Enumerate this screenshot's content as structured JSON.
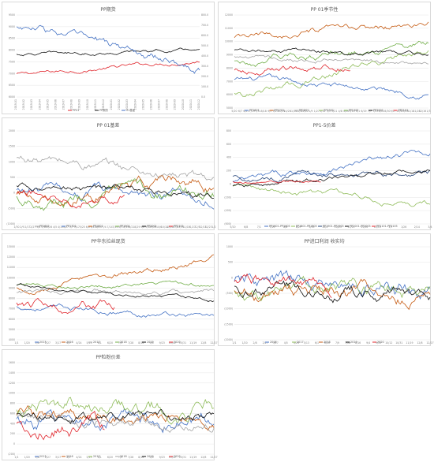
{
  "colors": {
    "blue": "#4472c4",
    "orange": "#c55a11",
    "gray": "#a5a5a5",
    "green": "#70ad47",
    "black": "#111111",
    "red": "#e0242b",
    "lightgreen": "#8fbc5a",
    "darkblue": "#264478",
    "grid": "#e6e6e6"
  },
  "chart_data": [
    {
      "type": "line",
      "title": "PP期货",
      "x_ticks": [
        "2019-01",
        "2019-02",
        "2019-03",
        "2019-04",
        "2019-05",
        "2019-06",
        "2019-07",
        "2019-08",
        "2019-09",
        "2019-10",
        "2019-11",
        "2019-12",
        "2020-01",
        "2020-02",
        "2020-03",
        "2020-04",
        "2020-05",
        "2020-06",
        "2020-07",
        "2020-08",
        "2020-09",
        "2020-10",
        "2020-11",
        "2020-12"
      ],
      "y_ticks": [
        "9500",
        "9000",
        "8500",
        "8000",
        "7500",
        "7000",
        "6500",
        "6000"
      ],
      "y2_ticks": [
        "800.0",
        "700.0",
        "600.0",
        "500.0",
        "400.0",
        "300.0",
        "200.0",
        "100.0",
        "0.0"
      ],
      "legend_position": "bottom",
      "series": [
        {
          "name": "PP01",
          "color": "red"
        },
        {
          "name": "PP期货",
          "color": "black"
        },
        {
          "name": "01基差",
          "color": "blue"
        }
      ]
    },
    {
      "type": "line",
      "title": "PP 01季节性",
      "x_ticks": [
        "5/20",
        "6/7",
        "6/25",
        "7/13",
        "7/31",
        "8/18",
        "9/5",
        "9/23",
        "10/11",
        "10/29",
        "11/16",
        "12/4",
        "12/22",
        "1/9",
        "1/27",
        "2/14",
        "3/3",
        "3/21",
        "4/8",
        "4/26",
        "5/14",
        "6/1",
        "6/19",
        "7/7",
        "7/25",
        "8/12",
        "8/30",
        "9/17",
        "10/5",
        "10/23",
        "11/10",
        "11/28",
        "12/16",
        "1/3"
      ],
      "y_ticks": [
        "12000",
        "11000",
        "10000",
        "9000",
        "8000",
        "7000",
        "6000",
        "5000"
      ],
      "legend_position": "bottom",
      "series": [
        {
          "name": "PP1601",
          "color": "blue"
        },
        {
          "name": "PP1701",
          "color": "orange"
        },
        {
          "name": "PP1801",
          "color": "gray"
        },
        {
          "name": "PP1901",
          "color": "lightgreen"
        },
        {
          "name": "PP1905",
          "color": "green"
        },
        {
          "name": "PP2001",
          "color": "black"
        },
        {
          "name": "PP2101",
          "color": "red"
        }
      ]
    },
    {
      "type": "line",
      "title": "PP 01基差",
      "x_ticks": [
        "1/30",
        "2/9",
        "2/17",
        "2/27",
        "3/8",
        "3/18",
        "3/26",
        "4/5",
        "4/15",
        "4/27",
        "5/7",
        "5/17",
        "5/25",
        "6/6",
        "6/14",
        "6/24",
        "7/4",
        "7/14",
        "7/24",
        "8/3",
        "8/13",
        "8/21",
        "8/29",
        "9/8",
        "9/18",
        "9/26",
        "10/6",
        "10/14",
        "10/22",
        "11/3",
        "11/11",
        "11/19",
        "11/27",
        "12/5",
        "12/15",
        "12/23",
        "1/2"
      ],
      "y_ticks": [
        "2000",
        "1500",
        "1000",
        "500",
        "0",
        "(500)",
        "(1000)"
      ],
      "legend_position": "bottom",
      "series": [
        {
          "name": "PP1601",
          "color": "gray"
        },
        {
          "name": "PP1701",
          "color": "blue"
        },
        {
          "name": "PP1801",
          "color": "orange"
        },
        {
          "name": "PP1901",
          "color": "green"
        },
        {
          "name": "PP2001",
          "color": "black"
        },
        {
          "name": "PP2101",
          "color": "red"
        }
      ]
    },
    {
      "type": "line",
      "title": "PP1-5价差",
      "x_ticks": [
        "5/20",
        "6/8",
        "7/1",
        "7/20",
        "8/8",
        "8/27",
        "9/15",
        "10/4",
        "10/23",
        "11/11",
        "11/30",
        "12/19",
        "1/7",
        "1/26",
        "2/14",
        "3/4"
      ],
      "y_ticks": [
        "800",
        "600",
        "400",
        "200",
        "0",
        "(200)",
        "(400)",
        "(600)"
      ],
      "legend_position": "bottom",
      "series": [
        {
          "name": "PP1601-PP1605",
          "color": "blue"
        },
        {
          "name": "PP1801-PP1805",
          "color": "lightgreen"
        },
        {
          "name": "PP1901-PP1905",
          "color": "darkblue"
        },
        {
          "name": "PP2001-PP2005",
          "color": "black"
        },
        {
          "name": "PP2101-PP2105",
          "color": "red"
        }
      ]
    },
    {
      "type": "line",
      "title": "PP华东拉丝现货",
      "x_ticks": [
        "1/1",
        "1/20",
        "2/8",
        "2/27",
        "3/17",
        "4/5",
        "4/24",
        "5/13",
        "6/1",
        "6/20",
        "7/9",
        "7/28",
        "8/16",
        "9/4",
        "9/23",
        "10/12",
        "10/31",
        "11/19",
        "12/8",
        "12/27"
      ],
      "y_ticks": [
        "13000",
        "12000",
        "11000",
        "10000",
        "9000",
        "8000",
        "7000",
        "6000",
        "5000",
        "4000"
      ],
      "legend_position": "bottom",
      "series": [
        {
          "name": "2015",
          "color": "blue"
        },
        {
          "name": "2016",
          "color": "orange"
        },
        {
          "name": "2017",
          "color": "gray"
        },
        {
          "name": "2018",
          "color": "green"
        },
        {
          "name": "2019",
          "color": "black"
        },
        {
          "name": "2020",
          "color": "red"
        }
      ]
    },
    {
      "type": "line",
      "title": "PP进口利润 收实均",
      "x_ticks": [
        "1/1",
        "1/20",
        "2/8",
        "2/27",
        "3/17",
        "4/5",
        "4/24",
        "5/13",
        "6/1",
        "6/20",
        "7/9",
        "7/28",
        "8/16",
        "9/4",
        "9/23",
        "10/12",
        "10/31",
        "11/19",
        "12/8",
        "12/27"
      ],
      "y_ticks": [
        "1000",
        "500",
        "0",
        "(500)",
        "(1000)",
        "(1500)",
        "(2000)"
      ],
      "legend_position": "bottom",
      "series": [
        {
          "name": "2016",
          "color": "blue"
        },
        {
          "name": "2017",
          "color": "lightgreen"
        },
        {
          "name": "2018",
          "color": "orange"
        },
        {
          "name": "2019",
          "color": "black"
        },
        {
          "name": "2020",
          "color": "red"
        }
      ]
    },
    {
      "type": "line",
      "title": "PP粒粉价差",
      "x_ticks": [
        "1/1",
        "1/20",
        "2/8",
        "2/27",
        "3/17",
        "4/5",
        "4/24",
        "5/13",
        "6/1",
        "6/20",
        "7/9",
        "7/28",
        "8/16",
        "9/4",
        "9/23",
        "10/12",
        "10/31",
        "11/19",
        "12/8",
        "12/27"
      ],
      "y_ticks": [
        "1600",
        "1400",
        "1200",
        "1000",
        "800",
        "600",
        "400",
        "200",
        "0",
        "(200)"
      ],
      "legend_position": "bottom",
      "series": [
        {
          "name": "2015",
          "color": "blue"
        },
        {
          "name": "2016",
          "color": "orange"
        },
        {
          "name": "2017",
          "color": "lightgreen"
        },
        {
          "name": "2018",
          "color": "gray"
        },
        {
          "name": "2019",
          "color": "black"
        },
        {
          "name": "2020",
          "color": "red"
        }
      ]
    }
  ]
}
